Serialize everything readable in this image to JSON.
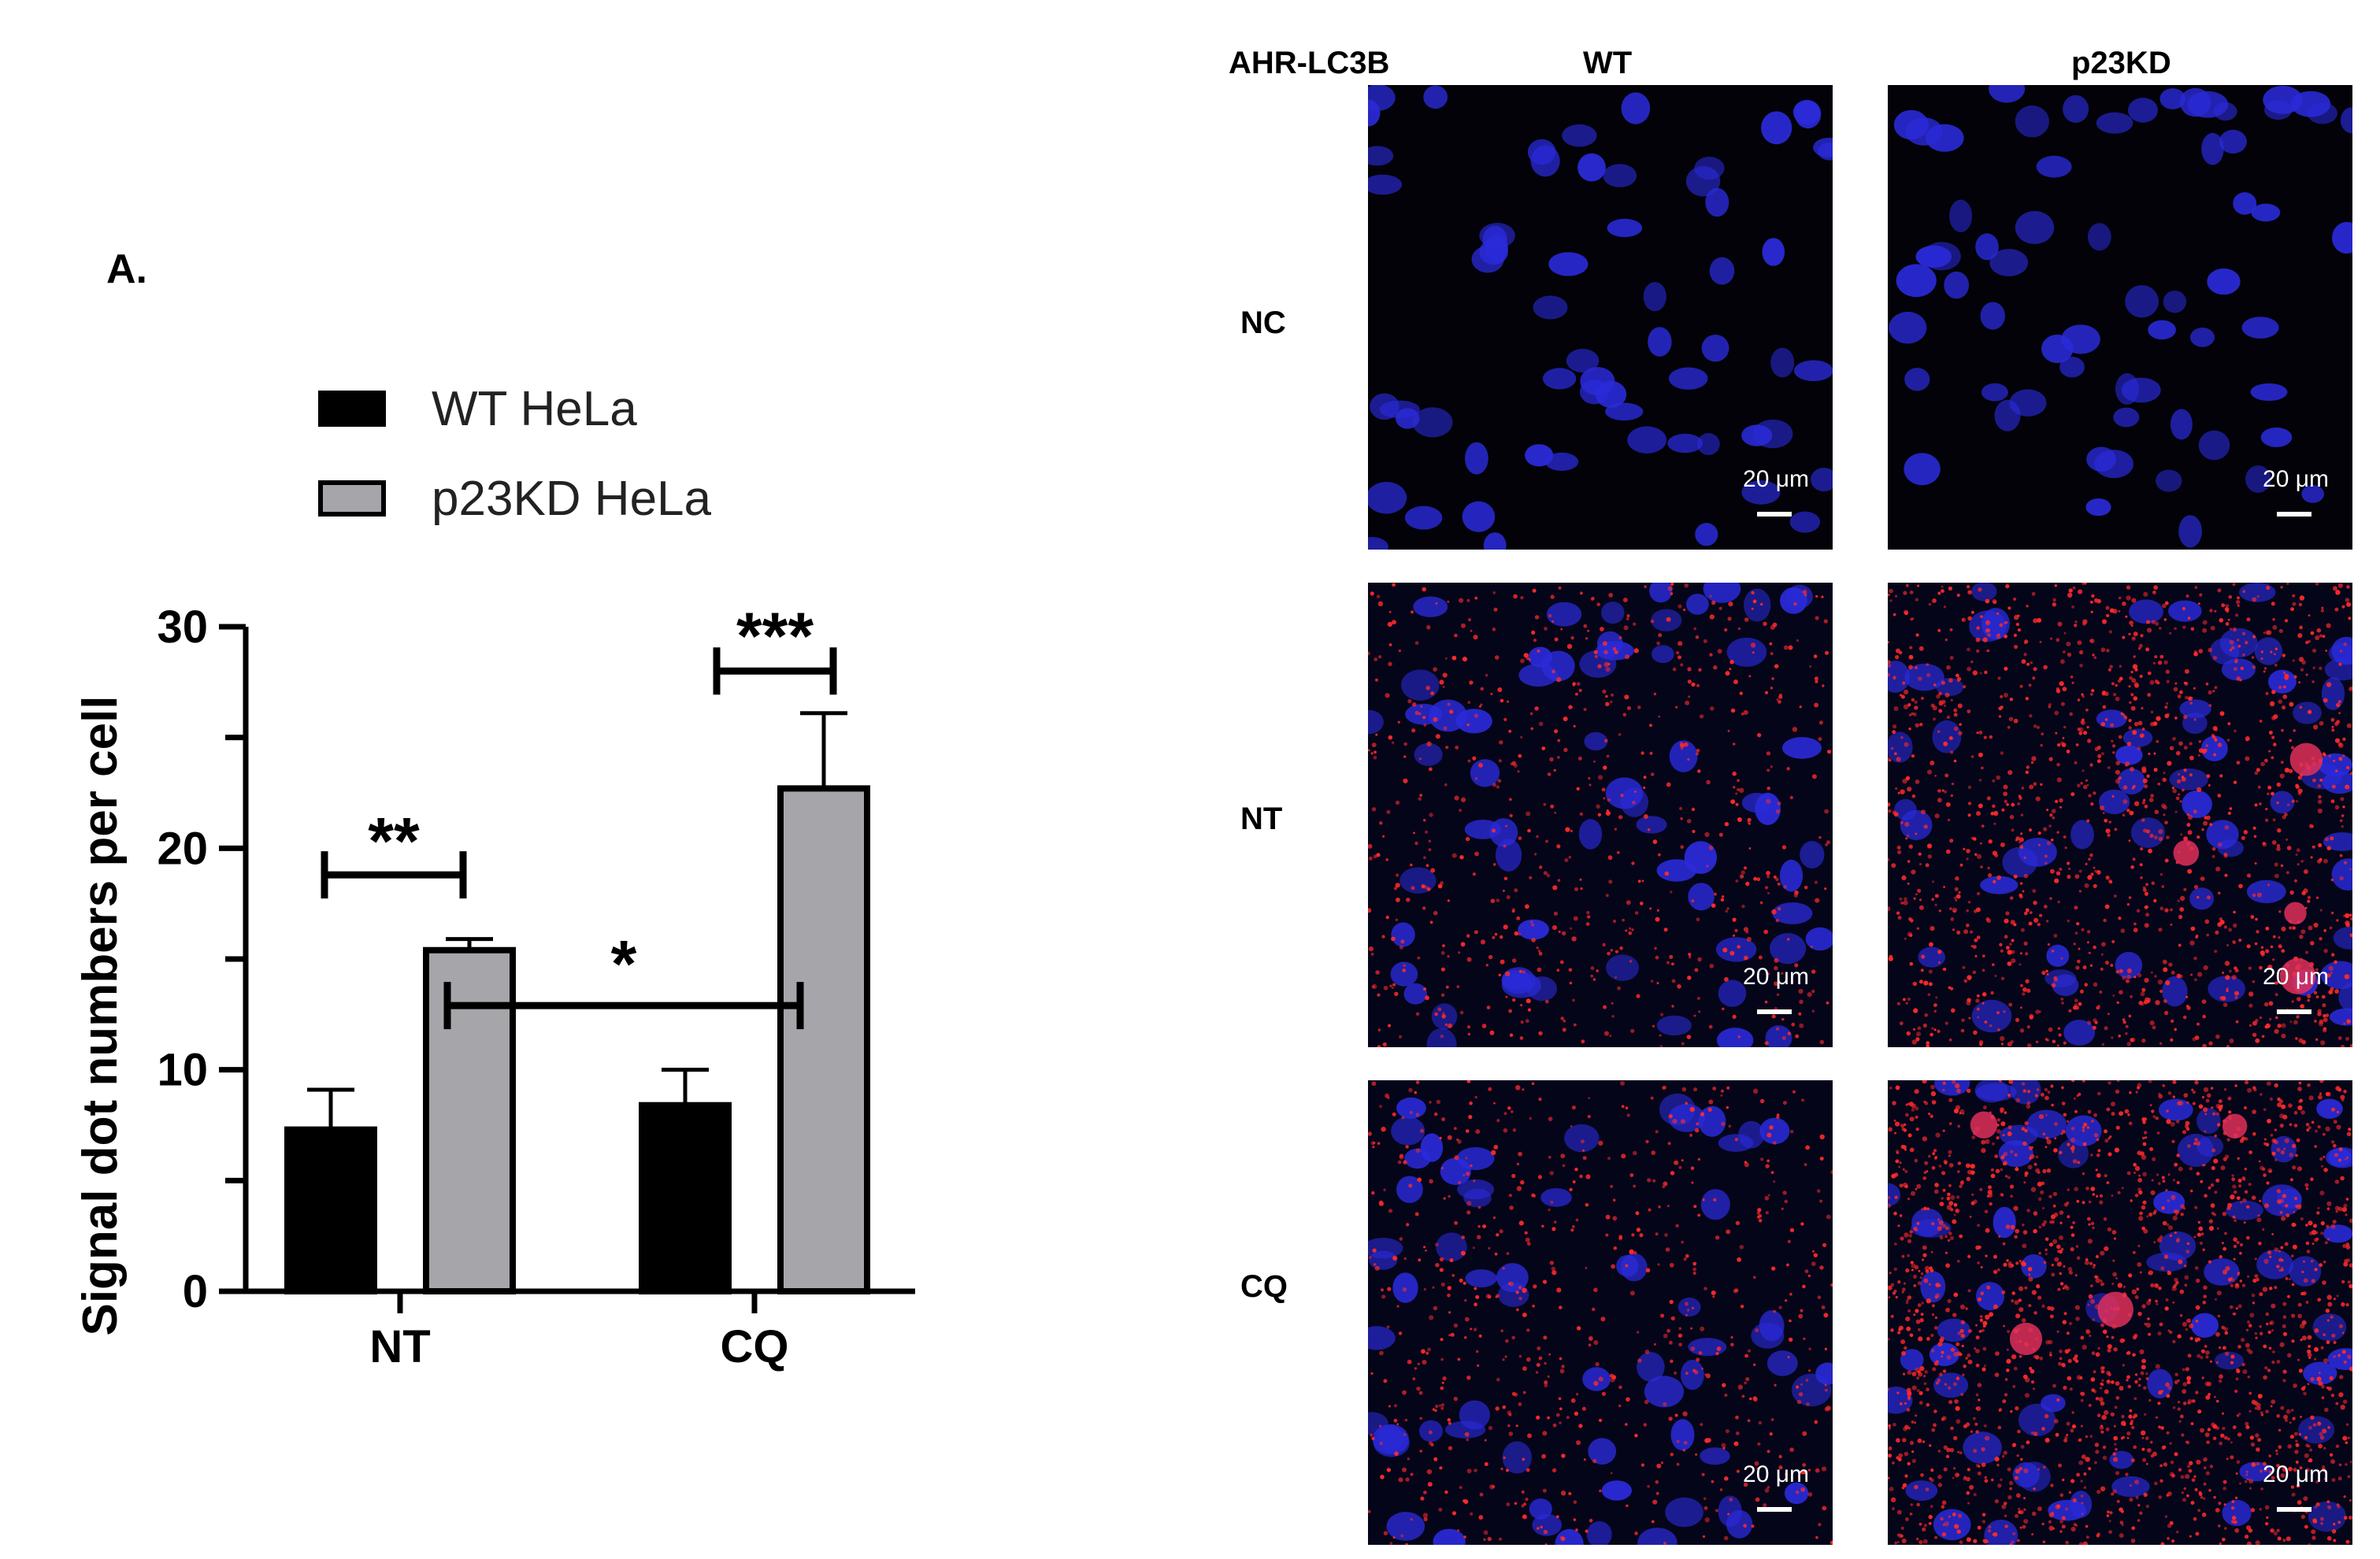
{
  "panel_label": "A.",
  "legend": [
    {
      "label": "WT HeLa",
      "color": "#000000"
    },
    {
      "label": "p23KD HeLa",
      "color": "#a6a6aa"
    }
  ],
  "chart_data": {
    "type": "bar",
    "categories": [
      "NT",
      "CQ"
    ],
    "series": [
      {
        "name": "WT HeLa",
        "color": "#000000",
        "values": [
          7.3,
          8.4
        ],
        "errors": [
          1.8,
          1.6
        ]
      },
      {
        "name": "p23KD HeLa",
        "color": "#a6a6aa",
        "values": [
          15.4,
          22.7
        ],
        "errors": [
          0.5,
          3.4
        ]
      }
    ],
    "ylabel": "Signal dot numbers per cell",
    "xlabel": "",
    "ylim": [
      0,
      30
    ],
    "yticks": [
      0,
      10,
      20,
      30
    ],
    "significance": [
      {
        "label": "**",
        "between": "WT HeLa NT vs p23KD HeLa NT"
      },
      {
        "label": "***",
        "between": "WT HeLa CQ vs p23KD HeLa CQ"
      },
      {
        "label": "*",
        "between": "p23KD HeLa NT vs p23KD HeLa CQ"
      }
    ]
  },
  "micrographs": {
    "corner_label": "AHR-LC3B",
    "columns": [
      "WT",
      "p23KD"
    ],
    "rows": [
      "NC",
      "NT",
      "CQ"
    ],
    "scale_bar_label": "20 μm",
    "nucleus_color": "#2a2ad8",
    "signal_color": "#ff2a2a"
  }
}
